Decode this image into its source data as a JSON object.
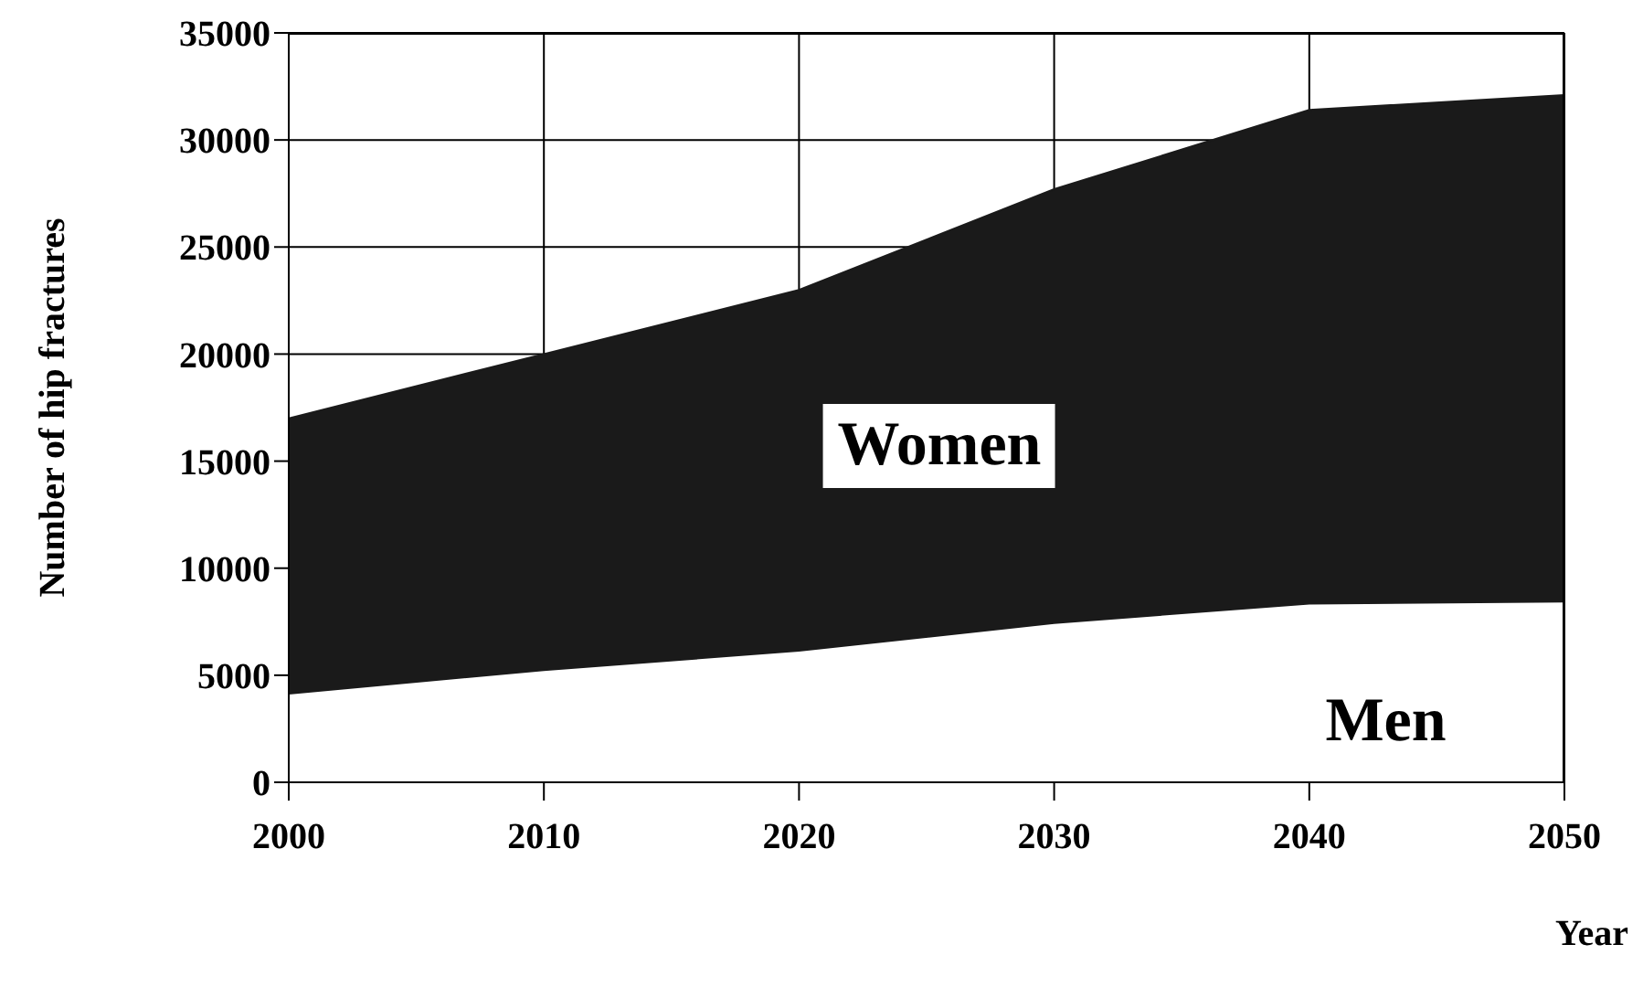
{
  "chart_data": {
    "type": "area",
    "stacked": true,
    "xlabel": "Year",
    "ylabel": "Number of hip fractures",
    "x": [
      2000,
      2010,
      2020,
      2030,
      2040,
      2050
    ],
    "xlim": [
      2000,
      2050
    ],
    "xticks": [
      2000,
      2010,
      2020,
      2030,
      2040,
      2050
    ],
    "ylim": [
      0,
      35000
    ],
    "yticks": [
      0,
      5000,
      10000,
      15000,
      20000,
      25000,
      30000,
      35000
    ],
    "grid": true,
    "legend": false,
    "series": [
      {
        "name": "Men",
        "color": "#ffffff",
        "values": [
          4100,
          5200,
          6100,
          7400,
          8300,
          8400
        ]
      },
      {
        "name": "Women",
        "color": "#1a1a1a",
        "values": [
          12900,
          14800,
          16900,
          20300,
          23100,
          23700
        ]
      }
    ]
  }
}
